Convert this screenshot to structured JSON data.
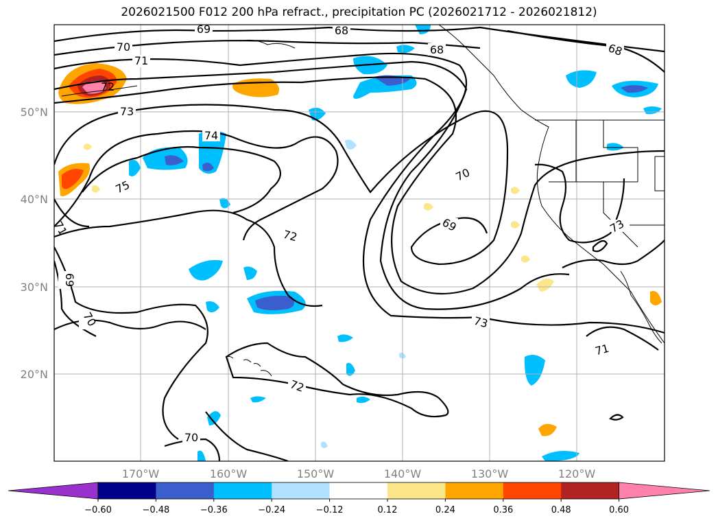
{
  "title": "2026021500 F012 200 hPa refract., precipitation PC (2026021712 - 2026021812)",
  "lat_labels": [
    "50°N",
    "40°N",
    "30°N",
    "20°N"
  ],
  "lon_labels": [
    "170°W",
    "160°W",
    "150°W",
    "140°W",
    "130°W",
    "120°W"
  ],
  "colorbar": {
    "ticks": [
      "−0.60",
      "−0.48",
      "−0.36",
      "−0.24",
      "−0.12",
      "0.12",
      "0.24",
      "0.36",
      "0.48",
      "0.60"
    ],
    "colors": [
      "#9932cc",
      "#00008b",
      "#3a5fcd",
      "#00bfff",
      "#b0e2ff",
      "#ffffff",
      "#fce68a",
      "#ffa500",
      "#ff4500",
      "#b22222",
      "#ff82ab"
    ]
  },
  "contour_labels": [
    "69",
    "68",
    "68",
    "68",
    "70",
    "71",
    "72",
    "73",
    "74",
    "75",
    "70",
    "69",
    "72",
    "73",
    "73",
    "71",
    "72",
    "70",
    "69",
    "70",
    "71"
  ]
}
